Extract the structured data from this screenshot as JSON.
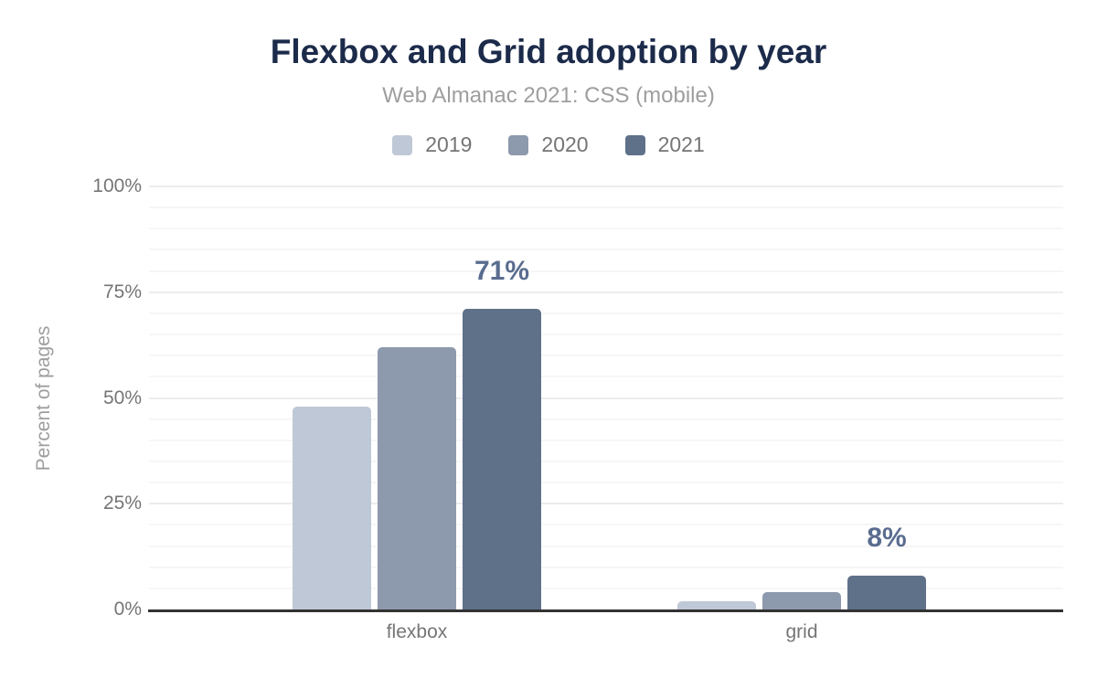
{
  "chart_data": {
    "type": "bar",
    "title": "Flexbox and Grid adoption by year",
    "subtitle": "Web Almanac 2021: CSS (mobile)",
    "ylabel": "Percent of pages",
    "xlabel": "",
    "categories": [
      "flexbox",
      "grid"
    ],
    "series": [
      {
        "name": "2019",
        "color": "#bfc8d6",
        "values": [
          48,
          2
        ]
      },
      {
        "name": "2020",
        "color": "#8d99ad",
        "values": [
          62,
          4
        ]
      },
      {
        "name": "2021",
        "color": "#5f7089",
        "values": [
          71,
          8
        ]
      }
    ],
    "annotations": [
      {
        "text": "71%",
        "category_index": 0,
        "series_index": 2
      },
      {
        "text": "8%",
        "category_index": 1,
        "series_index": 2
      }
    ],
    "y_ticks": [
      {
        "value": 0,
        "label": "0%"
      },
      {
        "value": 25,
        "label": "25%"
      },
      {
        "value": 50,
        "label": "50%"
      },
      {
        "value": 75,
        "label": "75%"
      },
      {
        "value": 100,
        "label": "100%"
      }
    ],
    "ylim": [
      0,
      100
    ],
    "minor_grid_step": 5,
    "grid": true,
    "legend_position": "top"
  },
  "colors": {
    "title": "#1c2b4a",
    "subtitle": "#9e9e9e",
    "tick": "#757575",
    "annotation": "#5a6c8f",
    "axis_line": "#333333",
    "grid_major": "#ececec",
    "grid_minor": "#f6f6f6",
    "background": "#ffffff"
  }
}
